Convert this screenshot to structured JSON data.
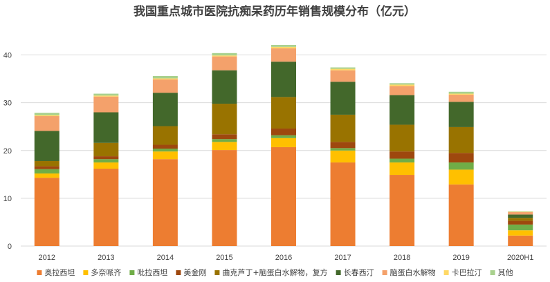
{
  "chart_data": {
    "type": "bar",
    "stacked": true,
    "title": "我国重点城市医院抗痴呆药历年销售规模分布（亿元）",
    "xlabel": "",
    "ylabel": "",
    "ylim": [
      0,
      45
    ],
    "yticks": [
      0,
      10,
      20,
      30,
      40
    ],
    "grid": true,
    "legend_position": "bottom",
    "categories": [
      "2012",
      "2013",
      "2014",
      "2015",
      "2016",
      "2017",
      "2018",
      "2019",
      "2020H1"
    ],
    "series": [
      {
        "name": "奥拉西坦",
        "color": "#ED7D31",
        "values": [
          14.3,
          16.2,
          18.2,
          20.1,
          20.7,
          17.5,
          14.9,
          12.9,
          2.2
        ]
      },
      {
        "name": "多奈哌齐",
        "color": "#FFC000",
        "values": [
          0.9,
          1.3,
          1.6,
          1.7,
          1.9,
          2.5,
          2.6,
          3.1,
          1.1
        ]
      },
      {
        "name": "吡拉西坦",
        "color": "#70AD47",
        "values": [
          0.9,
          0.7,
          0.6,
          0.6,
          0.6,
          0.5,
          0.8,
          1.5,
          1.2
        ]
      },
      {
        "name": "美金刚",
        "color": "#9E480E",
        "values": [
          0.6,
          0.6,
          0.8,
          1.0,
          1.4,
          1.3,
          1.5,
          2.0,
          0.8
        ]
      },
      {
        "name": "曲克芦丁+脑蛋白水解物，复方",
        "color": "#997300",
        "values": [
          1.1,
          2.8,
          3.9,
          6.4,
          6.6,
          5.7,
          5.6,
          5.4,
          0.6
        ]
      },
      {
        "name": "长春西汀",
        "color": "#43682B",
        "values": [
          6.3,
          6.4,
          7.0,
          7.0,
          7.4,
          6.9,
          6.2,
          5.3,
          0.7
        ]
      },
      {
        "name": "脑蛋白水解物",
        "color": "#F4A16B",
        "values": [
          3.1,
          3.3,
          2.8,
          2.9,
          2.8,
          2.4,
          1.9,
          1.5,
          0.5
        ]
      },
      {
        "name": "卡巴拉汀",
        "color": "#FFD966",
        "values": [
          0.2,
          0.2,
          0.2,
          0.2,
          0.3,
          0.3,
          0.3,
          0.2,
          0.1
        ]
      },
      {
        "name": "其他",
        "color": "#A9D18E",
        "values": [
          0.5,
          0.4,
          0.5,
          0.5,
          0.4,
          0.3,
          0.3,
          0.4,
          0.1
        ]
      }
    ]
  }
}
